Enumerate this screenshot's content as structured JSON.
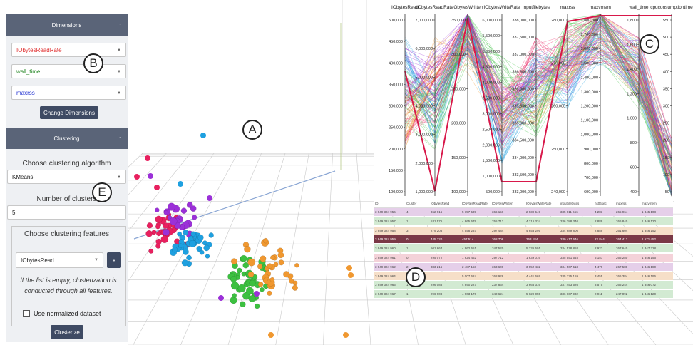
{
  "dimensions": {
    "title": "Dimensions",
    "toggle": "-",
    "x_select": "IObytesReadRate",
    "y_select": "wall_time",
    "z_select": "maxrss",
    "button": "Change Dimensions",
    "colors": {
      "x": "#e03030",
      "y": "#2a8a2a",
      "z": "#2030d0"
    }
  },
  "clustering": {
    "title": "Clustering",
    "toggle": "-",
    "algo_label": "Choose clustering algorithm",
    "algo_select": "KMeans",
    "nclusters_label": "Number of clusters",
    "nclusters_value": "5",
    "features_label": "Choose clustering features",
    "feature_select": "IObytesRead",
    "add_button": "+",
    "hint": "If the list is empty, clusterization is conducted through all features.",
    "normalized_label": "Use normalized dataset",
    "button": "Clusterize"
  },
  "markers": {
    "a": "A",
    "b": "B",
    "c": "C",
    "d": "D",
    "e": "E"
  },
  "parallel": {
    "axes": [
      {
        "name": "IObytesRead",
        "ticks": [
          "500,000",
          "450,000",
          "400,000",
          "350,000",
          "300,000",
          "250,000",
          "200,000",
          "150,000",
          "100,000"
        ]
      },
      {
        "name": "IObytesReadRate",
        "ticks": [
          "7,000,000",
          "6,000,000",
          "5,000,000",
          "4,000,000",
          "3,000,000",
          "2,000,000",
          "1,000,000"
        ]
      },
      {
        "name": "IObytesWritten",
        "ticks": [
          "350,000",
          "300,000",
          "250,000",
          "200,000",
          "150,000",
          "100,000"
        ]
      },
      {
        "name": "IObytesWriteRate",
        "ticks": [
          "6,000,000",
          "5,500,000",
          "5,000,000",
          "4,500,000",
          "4,000,000",
          "3,500,000",
          "3,000,000",
          "2,500,000",
          "2,000,000",
          "1,500,000",
          "1,000,000",
          "500,000"
        ]
      },
      {
        "name": "inputfilebytes",
        "ticks": [
          "338,000,000",
          "337,500,000",
          "337,000,000",
          "336,500,000",
          "336,000,000",
          "335,500,000",
          "335,000,000",
          "334,500,000",
          "334,000,000",
          "333,500,000",
          "333,000,000"
        ]
      },
      {
        "name": "maxrss",
        "ticks": [
          "280,000",
          "270,000",
          "260,000",
          "250,000",
          "240,000"
        ]
      },
      {
        "name": "maxvmem",
        "ticks": [
          "1,800,000",
          "1,700,000",
          "1,600,000",
          "1,500,000",
          "1,400,000",
          "1,300,000",
          "1,200,000",
          "1,100,000",
          "1,000,000",
          "900,000",
          "800,000",
          "700,000",
          "600,000"
        ]
      },
      {
        "name": "wall_time",
        "ticks": [
          "1,800",
          "1,600",
          "1,400",
          "1,200",
          "1,000",
          "800",
          "600",
          "400"
        ]
      },
      {
        "name": "cpuconsumptiontime",
        "ticks": [
          "550",
          "500",
          "450",
          "400",
          "350",
          "300",
          "250",
          "200",
          "150",
          "100",
          "50"
        ]
      }
    ]
  },
  "table": {
    "headers": [
      "ID",
      "Cluster",
      "IObytesRead",
      "IObytesReadRate",
      "IObytesWritten",
      "IObytesWriteRate",
      "inputfilebytes",
      "hs06sec",
      "maxrss",
      "maxvmem"
    ],
    "rows": [
      {
        "cells": [
          "3 949 324 956",
          "4",
          "362 916",
          "5 157 539",
          "366 156",
          "2 939 549",
          "335 011 666",
          "4 283",
          "265 964",
          "1 345 108"
        ],
        "color": "#e5cfe9"
      },
      {
        "cells": [
          "3 949 324 957",
          "1",
          "531 576",
          "4 865 679",
          "255 712",
          "4 716 334",
          "336 288 340",
          "2 889",
          "266 840",
          "1 346 120"
        ],
        "color": "#d2ead2"
      },
      {
        "cells": [
          "3 949 324 958",
          "3",
          "279 208",
          "4 558 237",
          "297 484",
          "4 653 295",
          "334 689 806",
          "2 889",
          "261 604",
          "1 346 152"
        ],
        "color": "#f6dfc8"
      },
      {
        "cells": [
          "3 949 324 959",
          "0",
          "445 720",
          "457 514",
          "368 708",
          "363 184",
          "330 417 646",
          "22 844",
          "264 412",
          "1 571 452"
        ],
        "color": "#7a3846",
        "text": "#fff"
      },
      {
        "cells": [
          "3 949 324 960",
          "1",
          "501 664",
          "4 962 651",
          "347 520",
          "5 736 591",
          "334 578 858",
          "2 923",
          "267 640",
          "1 347 228"
        ],
        "color": "#d2ead2"
      },
      {
        "cells": [
          "3 949 324 961",
          "0",
          "295 072",
          "1 624 462",
          "297 712",
          "1 639 016",
          "335 551 545",
          "5 157",
          "266 280",
          "1 346 156"
        ],
        "color": "#f4d2d9"
      },
      {
        "cells": [
          "3 949 324 962",
          "2",
          "383 216",
          "2 487 158",
          "363 600",
          "3 052 432",
          "334 567 518",
          "4 479",
          "267 588",
          "1 346 180"
        ],
        "color": "#e5cfe9"
      },
      {
        "cells": [
          "3 949 324 964",
          "3",
          "",
          "5 007 624",
          "268 928",
          "4 441 669",
          "335 725 159",
          "3 455",
          "266 384",
          "1 346 196"
        ],
        "color": "#f6dfc8"
      },
      {
        "cells": [
          "3 949 324 965",
          "1",
          "296 088",
          "4 890 227",
          "237 864",
          "3 666 316",
          "337 453 526",
          "3 575",
          "266 244",
          "1 346 072"
        ],
        "color": "#d2ead2"
      },
      {
        "cells": [
          "3 949 324 967",
          "1",
          "296 908",
          "4 903 170",
          "340 624",
          "5 629 055",
          "336 667 932",
          "2 911",
          "247 092",
          "1 346 120"
        ],
        "color": "#d2ead2"
      }
    ]
  },
  "scatter_colors": [
    "#e8205f",
    "#9b30d8",
    "#1ea0e0",
    "#3cc040",
    "#f09830"
  ]
}
